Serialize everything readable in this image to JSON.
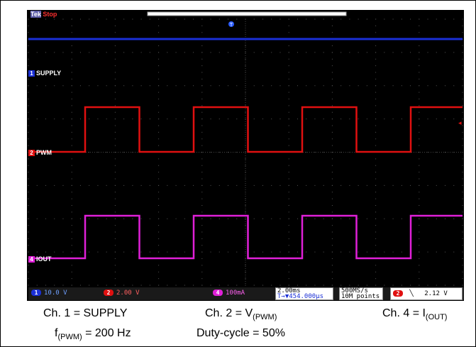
{
  "scope": {
    "brand": "Tek",
    "state": "Stop",
    "trigger_marker": "T",
    "channels": [
      {
        "id": "1",
        "label": "SUPPLY",
        "color": "#1a2fd6"
      },
      {
        "id": "2",
        "label": "PWM",
        "color": "#e01010"
      },
      {
        "id": "4",
        "label": "IOUT",
        "color": "#e020d8"
      }
    ],
    "status_bar": {
      "ch1_scale": "10.0 V",
      "ch2_scale": "2.00 V",
      "ch4_scale": "100mA",
      "timebase": "2.00ms",
      "trigger_position": "T→▼454.000µs",
      "sample_rate": "500MS/s",
      "record_length": "10M points",
      "trigger_channel": "2",
      "trigger_slope_icon": "falling-edge-icon",
      "trigger_level": "2.12 V"
    }
  },
  "captions": {
    "ch1": "Ch. 1 = SUPPLY",
    "ch2_prefix": "Ch. 2 = V",
    "ch2_sub": "(PWM)",
    "ch4_prefix": "Ch. 4 = I",
    "ch4_sub": "(OUT)",
    "freq_prefix": "f",
    "freq_sub": "(PWM)",
    "freq_value": " = 200 Hz",
    "duty": "Duty-cycle = 50%"
  }
}
